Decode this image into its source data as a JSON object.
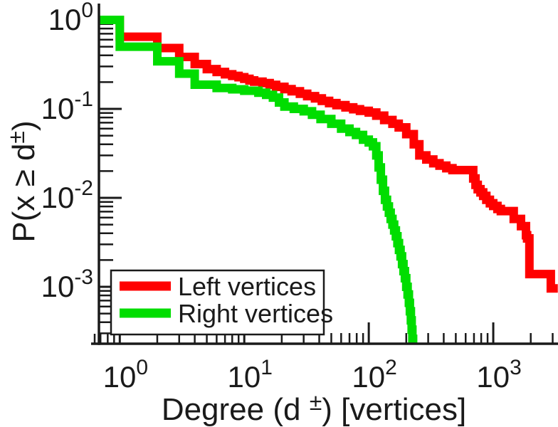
{
  "chart_data": {
    "type": "line",
    "subtype": "step-ccdf-loglog",
    "title": "",
    "xlabel": {
      "prefix": "Degree (d ",
      "sup": "±",
      "suffix": ") [vertices]"
    },
    "ylabel": {
      "prefix": "P(x ≥ d",
      "sup": "±",
      "suffix": ")"
    },
    "x_scale": "log",
    "y_scale": "log",
    "xlim": [
      0.68,
      3311
    ],
    "ylim": [
      0.000229,
      1.5
    ],
    "tick_base": "10",
    "x_major_tick_exponents": [
      0,
      1,
      2,
      3
    ],
    "y_major_tick_exponents": [
      0,
      -1,
      -2,
      -3
    ],
    "grid": false,
    "colors": {
      "axis": "#1a1a1a",
      "text": "#1a1a1a",
      "background": "#ffffff"
    },
    "legend": {
      "position": "bottom-left",
      "items": [
        {
          "label": "Left vertices",
          "color": "#ff0000"
        },
        {
          "label": "Right vertices",
          "color": "#00dd00"
        }
      ]
    },
    "series": [
      {
        "name": "Left vertices",
        "color": "#ff0000",
        "end_x": 3300,
        "points": [
          [
            0.68,
            1.0
          ],
          [
            1,
            0.648
          ],
          [
            2,
            0.483
          ],
          [
            3,
            0.384
          ],
          [
            4,
            0.319
          ],
          [
            5,
            0.28
          ],
          [
            6,
            0.26
          ],
          [
            7,
            0.245
          ],
          [
            8,
            0.235
          ],
          [
            9,
            0.227
          ],
          [
            10,
            0.218
          ],
          [
            11,
            0.209
          ],
          [
            12,
            0.202
          ],
          [
            14,
            0.195
          ],
          [
            16,
            0.186
          ],
          [
            18,
            0.177
          ],
          [
            21,
            0.167
          ],
          [
            24,
            0.158
          ],
          [
            28,
            0.148
          ],
          [
            32,
            0.139
          ],
          [
            37,
            0.131
          ],
          [
            42,
            0.123
          ],
          [
            48,
            0.116
          ],
          [
            55,
            0.11
          ],
          [
            65,
            0.104
          ],
          [
            75,
            0.099
          ],
          [
            85,
            0.095
          ],
          [
            100,
            0.091
          ],
          [
            115,
            0.084
          ],
          [
            133,
            0.075
          ],
          [
            155,
            0.068
          ],
          [
            174,
            0.062
          ],
          [
            200,
            0.052
          ],
          [
            230,
            0.04
          ],
          [
            255,
            0.03
          ],
          [
            290,
            0.027
          ],
          [
            330,
            0.0245
          ],
          [
            370,
            0.023
          ],
          [
            420,
            0.0215
          ],
          [
            470,
            0.0205
          ],
          [
            690,
            0.0165
          ],
          [
            720,
            0.014
          ],
          [
            750,
            0.0125
          ],
          [
            790,
            0.0115
          ],
          [
            830,
            0.0105
          ],
          [
            880,
            0.0095
          ],
          [
            940,
            0.0087
          ],
          [
            1000,
            0.0081
          ],
          [
            1080,
            0.0075
          ],
          [
            1150,
            0.0071
          ],
          [
            1460,
            0.0058
          ],
          [
            1670,
            0.0048
          ],
          [
            1830,
            0.0038
          ],
          [
            1870,
            0.0035
          ],
          [
            1950,
            0.00139
          ],
          [
            2900,
            0.00096
          ]
        ]
      },
      {
        "name": "Right vertices",
        "color": "#00dd00",
        "end_x": 228,
        "points": [
          [
            0.68,
            1.0
          ],
          [
            1,
            0.5
          ],
          [
            2,
            0.343
          ],
          [
            3,
            0.249
          ],
          [
            4,
            0.187
          ],
          [
            6,
            0.172
          ],
          [
            8,
            0.166
          ],
          [
            10,
            0.16
          ],
          [
            13,
            0.152
          ],
          [
            15,
            0.144
          ],
          [
            17,
            0.134
          ],
          [
            19,
            0.118
          ],
          [
            21,
            0.106
          ],
          [
            25,
            0.1
          ],
          [
            30,
            0.094
          ],
          [
            35,
            0.086
          ],
          [
            41,
            0.077
          ],
          [
            50,
            0.068
          ],
          [
            60,
            0.06
          ],
          [
            70,
            0.055
          ],
          [
            79,
            0.051
          ],
          [
            90,
            0.045
          ],
          [
            100,
            0.042
          ],
          [
            108,
            0.038
          ],
          [
            115,
            0.03
          ],
          [
            120,
            0.022
          ],
          [
            125,
            0.016
          ],
          [
            130,
            0.012
          ],
          [
            135,
            0.0095
          ],
          [
            140,
            0.008
          ],
          [
            145,
            0.0068
          ],
          [
            150,
            0.0058
          ],
          [
            155,
            0.005
          ],
          [
            160,
            0.0043
          ],
          [
            165,
            0.0037
          ],
          [
            170,
            0.0031
          ],
          [
            175,
            0.0026
          ],
          [
            180,
            0.0022
          ],
          [
            185,
            0.0018
          ],
          [
            190,
            0.0015
          ],
          [
            195,
            0.00125
          ],
          [
            200,
            0.001
          ],
          [
            205,
            0.00082
          ],
          [
            210,
            0.00066
          ],
          [
            214,
            0.00053
          ],
          [
            218,
            0.00042
          ],
          [
            221,
            0.00033
          ],
          [
            224,
            0.00026
          ],
          [
            227,
            0.0002
          ]
        ]
      }
    ]
  }
}
